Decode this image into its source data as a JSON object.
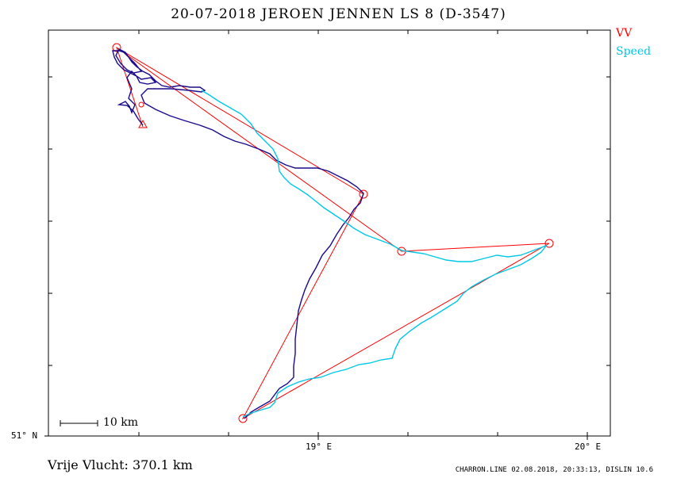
{
  "title": "20-07-2018    JEROEN JENNEN    LS 8 (D-3547)",
  "legend": {
    "vv": {
      "label": "VV",
      "color": "#ff0000"
    },
    "speed": {
      "label": "Speed",
      "color": "#00c8e6"
    }
  },
  "axes": {
    "latitude_label": "51° N",
    "longitude_labels": [
      "19° E",
      "20° E"
    ]
  },
  "scale": {
    "label": "10 km"
  },
  "distance": "Vrije Vlucht:  370.1 km",
  "footer": "CHARRON.LINE 02.08.2018, 20:33:13, DISLIN 10.6",
  "colors": {
    "track_vv": "#1a0a8c",
    "track_speed": "#00c8e6",
    "task": "#ff0000",
    "frame": "#000000"
  }
}
